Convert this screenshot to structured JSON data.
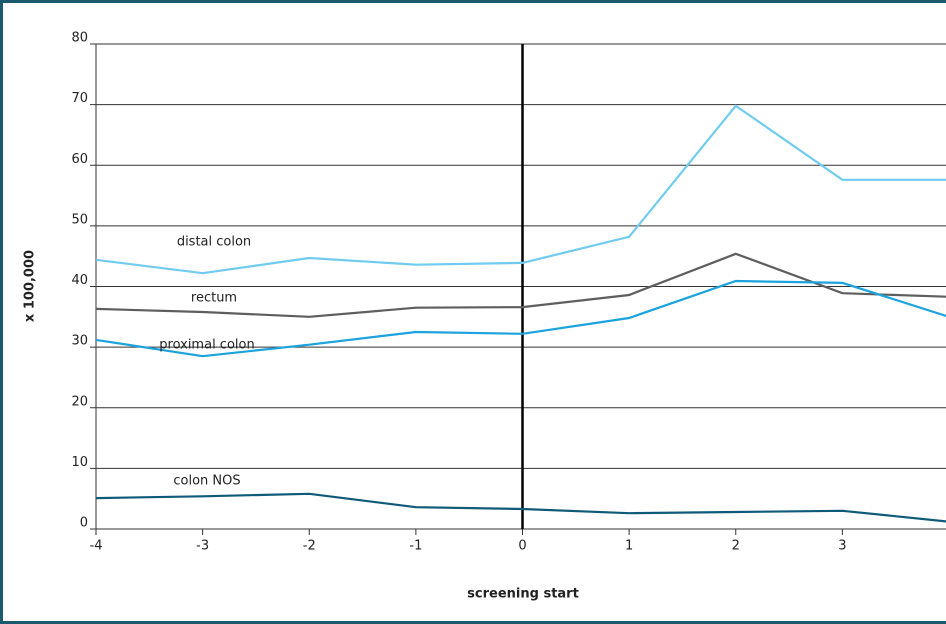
{
  "chart_data": {
    "type": "line",
    "x_label": "screening start",
    "y_label": "x 100,000",
    "x": [
      -4,
      -3,
      -2,
      -1,
      0,
      1,
      2,
      3,
      4
    ],
    "xlim": [
      -4,
      4
    ],
    "xticks": [
      -4,
      -3,
      -2,
      -1,
      0,
      1,
      2,
      3
    ],
    "ylim": [
      0,
      80
    ],
    "yticks": [
      0,
      10,
      20,
      30,
      40,
      50,
      60,
      70,
      80
    ],
    "grid": true,
    "vline": 0,
    "series": [
      {
        "name": "distal colon",
        "color": "#6fcbef",
        "values": [
          44.4,
          42.2,
          44.7,
          43.6,
          43.9,
          48.2,
          69.8,
          57.6,
          57.6
        ]
      },
      {
        "name": "rectum",
        "color": "#5e5e5e",
        "values": [
          36.3,
          35.8,
          35.0,
          36.5,
          36.6,
          38.6,
          45.4,
          38.9,
          38.3
        ]
      },
      {
        "name": "proximal colon",
        "color": "#1aa3dc",
        "values": [
          31.2,
          28.5,
          30.4,
          32.5,
          32.2,
          34.8,
          40.9,
          40.6,
          35.0
        ]
      },
      {
        "name": "colon NOS",
        "color": "#0e5a78",
        "values": [
          5.1,
          5.4,
          5.8,
          3.6,
          3.3,
          2.6,
          2.8,
          3.0,
          1.2
        ]
      }
    ]
  }
}
